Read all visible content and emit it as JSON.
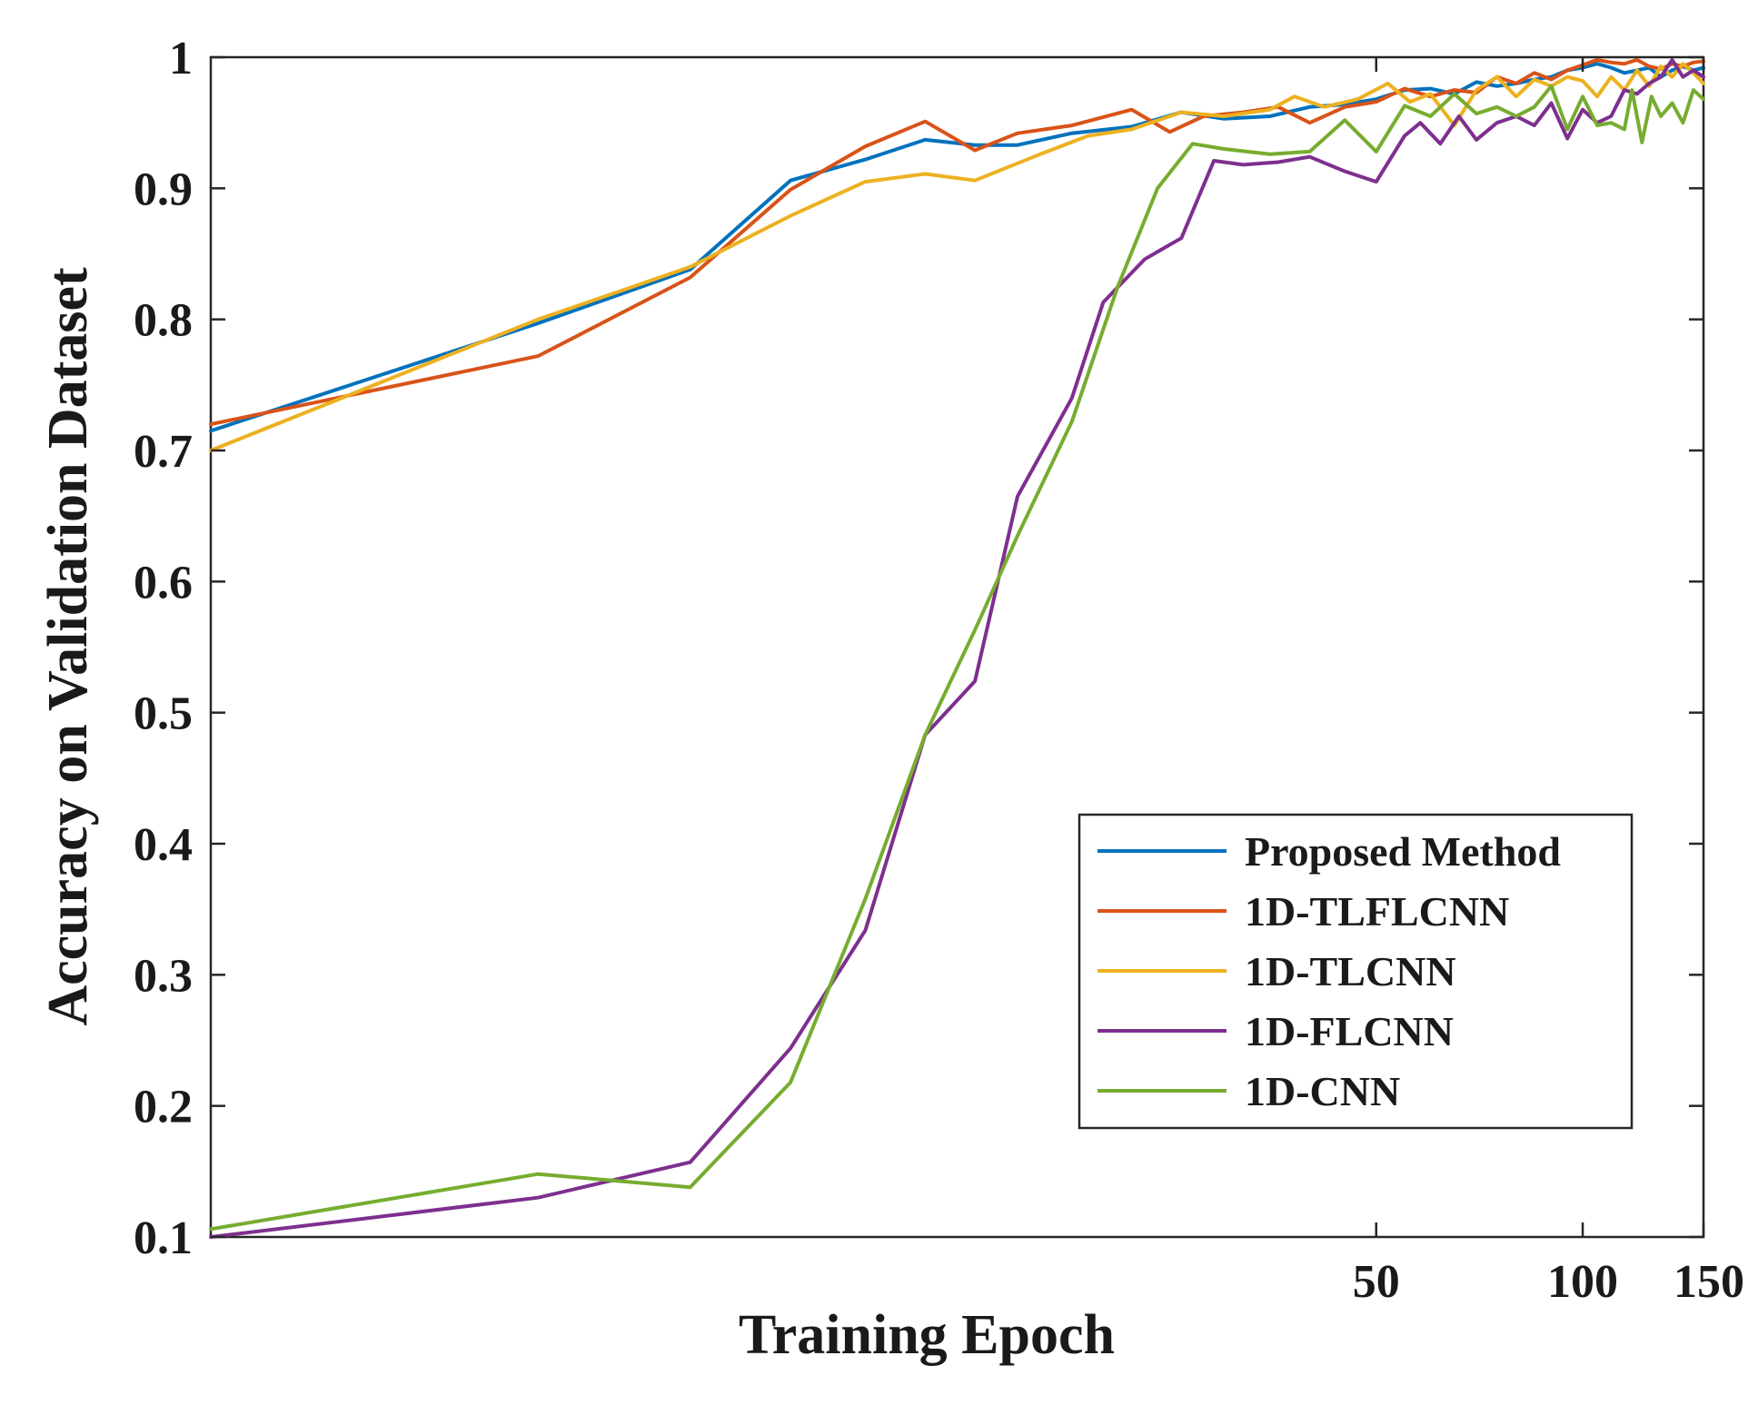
{
  "chart_data": {
    "type": "line",
    "title": "",
    "xlabel": "Training Epoch",
    "ylabel": "Accuracy on Validation Dataset",
    "xscale": "log",
    "xlim": [
      1,
      150
    ],
    "ylim": [
      0.1,
      1
    ],
    "grid": false,
    "legend_position": "lower-right",
    "x_ticks": [
      50,
      100,
      150
    ],
    "x_tick_labels": [
      "50",
      "100",
      "150"
    ],
    "y_ticks": [
      0.1,
      0.2,
      0.3,
      0.4,
      0.5,
      0.6,
      0.7,
      0.8,
      0.9,
      1
    ],
    "y_tick_labels": [
      "0.1",
      "0.2",
      "0.3",
      "0.4",
      "0.5",
      "0.6",
      "0.7",
      "0.8",
      "0.9",
      "1"
    ],
    "series": [
      {
        "name": "Proposed Method",
        "color": "#0072BD",
        "points": [
          [
            1,
            0.715
          ],
          [
            3,
            0.797
          ],
          [
            5,
            0.838
          ],
          [
            7,
            0.906
          ],
          [
            9,
            0.922
          ],
          [
            11,
            0.937
          ],
          [
            13,
            0.933
          ],
          [
            15,
            0.933
          ],
          [
            18,
            0.942
          ],
          [
            22,
            0.947
          ],
          [
            26,
            0.958
          ],
          [
            30,
            0.953
          ],
          [
            35,
            0.955
          ],
          [
            40,
            0.962
          ],
          [
            45,
            0.964
          ],
          [
            50,
            0.968
          ],
          [
            55,
            0.975
          ],
          [
            60,
            0.976
          ],
          [
            65,
            0.972
          ],
          [
            70,
            0.981
          ],
          [
            75,
            0.978
          ],
          [
            80,
            0.98
          ],
          [
            85,
            0.983
          ],
          [
            90,
            0.985
          ],
          [
            95,
            0.99
          ],
          [
            100,
            0.992
          ],
          [
            105,
            0.995
          ],
          [
            110,
            0.992
          ],
          [
            115,
            0.988
          ],
          [
            120,
            0.99
          ],
          [
            125,
            0.992
          ],
          [
            130,
            0.985
          ],
          [
            135,
            0.99
          ],
          [
            140,
            0.993
          ],
          [
            145,
            0.99
          ],
          [
            150,
            0.992
          ]
        ]
      },
      {
        "name": "1D-TLFLCNN",
        "color": "#D95319",
        "points": [
          [
            1,
            0.72
          ],
          [
            3,
            0.772
          ],
          [
            5,
            0.832
          ],
          [
            7,
            0.899
          ],
          [
            9,
            0.932
          ],
          [
            11,
            0.951
          ],
          [
            13,
            0.929
          ],
          [
            15,
            0.942
          ],
          [
            18,
            0.948
          ],
          [
            22,
            0.96
          ],
          [
            25,
            0.943
          ],
          [
            28,
            0.955
          ],
          [
            32,
            0.958
          ],
          [
            36,
            0.962
          ],
          [
            40,
            0.95
          ],
          [
            45,
            0.962
          ],
          [
            50,
            0.966
          ],
          [
            55,
            0.976
          ],
          [
            60,
            0.97
          ],
          [
            65,
            0.975
          ],
          [
            70,
            0.973
          ],
          [
            75,
            0.985
          ],
          [
            80,
            0.98
          ],
          [
            85,
            0.988
          ],
          [
            90,
            0.983
          ],
          [
            95,
            0.99
          ],
          [
            100,
            0.994
          ],
          [
            105,
            0.998
          ],
          [
            110,
            0.996
          ],
          [
            115,
            0.995
          ],
          [
            120,
            0.998
          ],
          [
            125,
            0.993
          ],
          [
            130,
            0.991
          ],
          [
            135,
            0.995
          ],
          [
            140,
            0.993
          ],
          [
            145,
            0.996
          ],
          [
            150,
            0.997
          ]
        ]
      },
      {
        "name": "1D-TLCNN",
        "color": "#EDB120",
        "points": [
          [
            1,
            0.7
          ],
          [
            3,
            0.8
          ],
          [
            5,
            0.84
          ],
          [
            7,
            0.879
          ],
          [
            9,
            0.905
          ],
          [
            11,
            0.911
          ],
          [
            13,
            0.906
          ],
          [
            16,
            0.925
          ],
          [
            19,
            0.94
          ],
          [
            22,
            0.945
          ],
          [
            26,
            0.958
          ],
          [
            30,
            0.955
          ],
          [
            35,
            0.96
          ],
          [
            38,
            0.97
          ],
          [
            42,
            0.962
          ],
          [
            47,
            0.968
          ],
          [
            52,
            0.98
          ],
          [
            56,
            0.966
          ],
          [
            60,
            0.972
          ],
          [
            65,
            0.948
          ],
          [
            70,
            0.975
          ],
          [
            75,
            0.985
          ],
          [
            80,
            0.97
          ],
          [
            85,
            0.983
          ],
          [
            90,
            0.978
          ],
          [
            95,
            0.985
          ],
          [
            100,
            0.982
          ],
          [
            105,
            0.97
          ],
          [
            110,
            0.985
          ],
          [
            115,
            0.975
          ],
          [
            120,
            0.99
          ],
          [
            125,
            0.978
          ],
          [
            130,
            0.993
          ],
          [
            135,
            0.985
          ],
          [
            140,
            0.995
          ],
          [
            145,
            0.988
          ],
          [
            150,
            0.98
          ]
        ]
      },
      {
        "name": "1D-FLCNN",
        "color": "#7E2F8E",
        "points": [
          [
            1,
            0.1
          ],
          [
            3,
            0.13
          ],
          [
            5,
            0.157
          ],
          [
            7,
            0.244
          ],
          [
            9,
            0.334
          ],
          [
            11,
            0.483
          ],
          [
            13,
            0.524
          ],
          [
            15,
            0.665
          ],
          [
            18,
            0.74
          ],
          [
            20,
            0.813
          ],
          [
            23,
            0.846
          ],
          [
            26,
            0.862
          ],
          [
            29,
            0.921
          ],
          [
            32,
            0.918
          ],
          [
            36,
            0.92
          ],
          [
            40,
            0.924
          ],
          [
            45,
            0.913
          ],
          [
            50,
            0.905
          ],
          [
            55,
            0.94
          ],
          [
            58,
            0.95
          ],
          [
            62,
            0.934
          ],
          [
            66,
            0.955
          ],
          [
            70,
            0.937
          ],
          [
            75,
            0.95
          ],
          [
            80,
            0.955
          ],
          [
            85,
            0.948
          ],
          [
            90,
            0.965
          ],
          [
            95,
            0.938
          ],
          [
            100,
            0.96
          ],
          [
            105,
            0.95
          ],
          [
            110,
            0.955
          ],
          [
            115,
            0.975
          ],
          [
            120,
            0.972
          ],
          [
            125,
            0.98
          ],
          [
            130,
            0.985
          ],
          [
            135,
            0.998
          ],
          [
            140,
            0.985
          ],
          [
            145,
            0.99
          ],
          [
            150,
            0.985
          ]
        ]
      },
      {
        "name": "1D-CNN",
        "color": "#77AC30",
        "points": [
          [
            1,
            0.106
          ],
          [
            3,
            0.148
          ],
          [
            5,
            0.138
          ],
          [
            7,
            0.218
          ],
          [
            9,
            0.358
          ],
          [
            11,
            0.483
          ],
          [
            13,
            0.563
          ],
          [
            15,
            0.635
          ],
          [
            18,
            0.722
          ],
          [
            21,
            0.825
          ],
          [
            24,
            0.9
          ],
          [
            27,
            0.934
          ],
          [
            30,
            0.93
          ],
          [
            35,
            0.926
          ],
          [
            40,
            0.928
          ],
          [
            45,
            0.952
          ],
          [
            50,
            0.928
          ],
          [
            55,
            0.963
          ],
          [
            60,
            0.955
          ],
          [
            65,
            0.972
          ],
          [
            70,
            0.957
          ],
          [
            75,
            0.962
          ],
          [
            80,
            0.955
          ],
          [
            85,
            0.962
          ],
          [
            90,
            0.978
          ],
          [
            95,
            0.945
          ],
          [
            100,
            0.97
          ],
          [
            105,
            0.948
          ],
          [
            110,
            0.95
          ],
          [
            115,
            0.945
          ],
          [
            118,
            0.975
          ],
          [
            122,
            0.935
          ],
          [
            126,
            0.97
          ],
          [
            130,
            0.955
          ],
          [
            135,
            0.965
          ],
          [
            140,
            0.95
          ],
          [
            145,
            0.975
          ],
          [
            150,
            0.968
          ]
        ]
      }
    ]
  }
}
